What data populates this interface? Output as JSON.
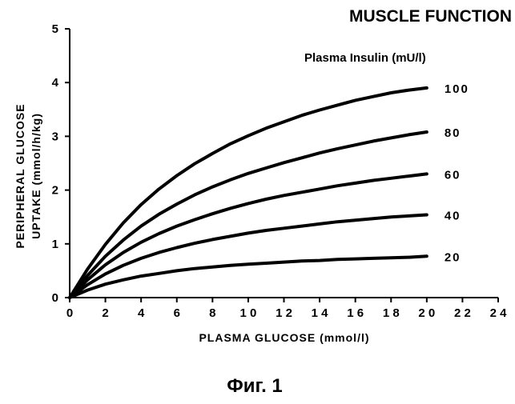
{
  "chart_data": {
    "type": "line",
    "title": "MUSCLE FUNCTION",
    "legend_title": "Plasma Insulin (mU/l)",
    "xlabel": "PLASMA GLUCOSE (mmol/l)",
    "ylabel_line1": "PERIPHERAL GLUCOSE",
    "ylabel_line2": "UPTAKE (mmol/h/kg)",
    "xlim": [
      0,
      24
    ],
    "ylim": [
      0,
      5
    ],
    "x_ticks": [
      "0",
      "2",
      "4",
      "6",
      "8",
      "10",
      "12",
      "14",
      "16",
      "18",
      "20",
      "22",
      "24"
    ],
    "y_ticks": [
      "0",
      "1",
      "2",
      "3",
      "4",
      "5"
    ],
    "grid": false,
    "legend": "labels at line ends",
    "x": [
      0,
      1,
      2,
      3,
      4,
      5,
      6,
      7,
      8,
      9,
      10,
      11,
      12,
      13,
      14,
      15,
      16,
      17,
      18,
      19,
      20
    ],
    "series": [
      {
        "name": "100",
        "values": [
          0,
          0.53,
          0.99,
          1.39,
          1.73,
          2.02,
          2.27,
          2.49,
          2.68,
          2.86,
          3.01,
          3.15,
          3.27,
          3.39,
          3.49,
          3.58,
          3.67,
          3.74,
          3.81,
          3.86,
          3.9
        ]
      },
      {
        "name": "80",
        "values": [
          0,
          0.41,
          0.77,
          1.07,
          1.33,
          1.55,
          1.74,
          1.91,
          2.06,
          2.19,
          2.31,
          2.41,
          2.51,
          2.6,
          2.69,
          2.77,
          2.84,
          2.91,
          2.97,
          3.03,
          3.08
        ]
      },
      {
        "name": "60",
        "values": [
          0,
          0.33,
          0.61,
          0.84,
          1.03,
          1.19,
          1.33,
          1.45,
          1.56,
          1.66,
          1.75,
          1.83,
          1.9,
          1.96,
          2.02,
          2.08,
          2.13,
          2.18,
          2.22,
          2.26,
          2.3
        ]
      },
      {
        "name": "40",
        "values": [
          0,
          0.24,
          0.44,
          0.6,
          0.73,
          0.84,
          0.93,
          1.01,
          1.08,
          1.14,
          1.2,
          1.25,
          1.29,
          1.33,
          1.37,
          1.41,
          1.44,
          1.47,
          1.5,
          1.52,
          1.54
        ]
      },
      {
        "name": "20",
        "values": [
          0,
          0.14,
          0.25,
          0.33,
          0.4,
          0.45,
          0.5,
          0.54,
          0.57,
          0.6,
          0.62,
          0.64,
          0.66,
          0.68,
          0.69,
          0.71,
          0.72,
          0.73,
          0.74,
          0.75,
          0.77
        ]
      }
    ]
  },
  "caption": "Фиг. 1"
}
